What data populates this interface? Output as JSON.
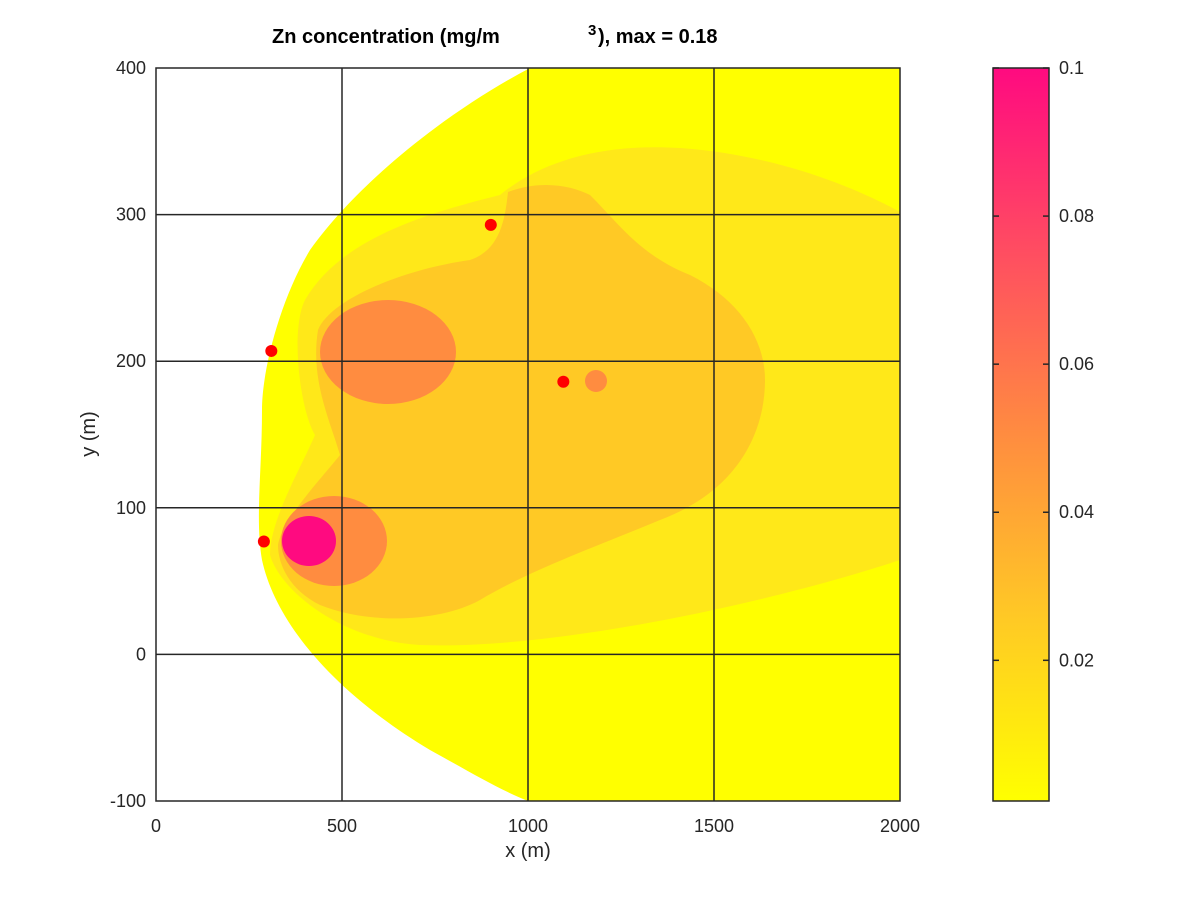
{
  "chart_data": {
    "type": "contour",
    "title": {
      "prefix": "Zn concentration (mg/m",
      "superscript": "3",
      "suffix": "), max =  0.18"
    },
    "xlabel": "x (m)",
    "ylabel": "y (m)",
    "xlim": [
      0,
      2000
    ],
    "ylim": [
      -100,
      400
    ],
    "xticks": [
      0,
      500,
      1000,
      1500,
      2000
    ],
    "yticks": [
      -100,
      0,
      100,
      200,
      300,
      400
    ],
    "grid": true,
    "colorbar": {
      "lim": [
        0.001,
        0.1
      ],
      "ticks": [
        0.02,
        0.04,
        0.06,
        0.08,
        0.1
      ],
      "tick_labels": [
        "0.02",
        "0.04",
        "0.06",
        "0.08",
        "0.1"
      ],
      "gradient": [
        "#ffff00",
        "#ffc925",
        "#ff8c40",
        "#ff4d61",
        "#ff0a80"
      ]
    },
    "contour_levels": [
      {
        "min_value": 0.001,
        "color": "#ffff00"
      },
      {
        "min_value": 0.01,
        "color": "#ffe819"
      },
      {
        "min_value": 0.02,
        "color": "#ffc925"
      },
      {
        "min_value": 0.04,
        "color": "#ff8c40"
      },
      {
        "min_value": 0.09,
        "color": "#ff0a80"
      }
    ],
    "sources": [
      {
        "x": 290,
        "y": 77,
        "color": "#ff0000"
      },
      {
        "x": 310,
        "y": 207,
        "color": "#ff0000"
      },
      {
        "x": 900,
        "y": 293,
        "color": "#ff0000"
      },
      {
        "x": 1095,
        "y": 186,
        "color": "#ff0000"
      }
    ]
  }
}
